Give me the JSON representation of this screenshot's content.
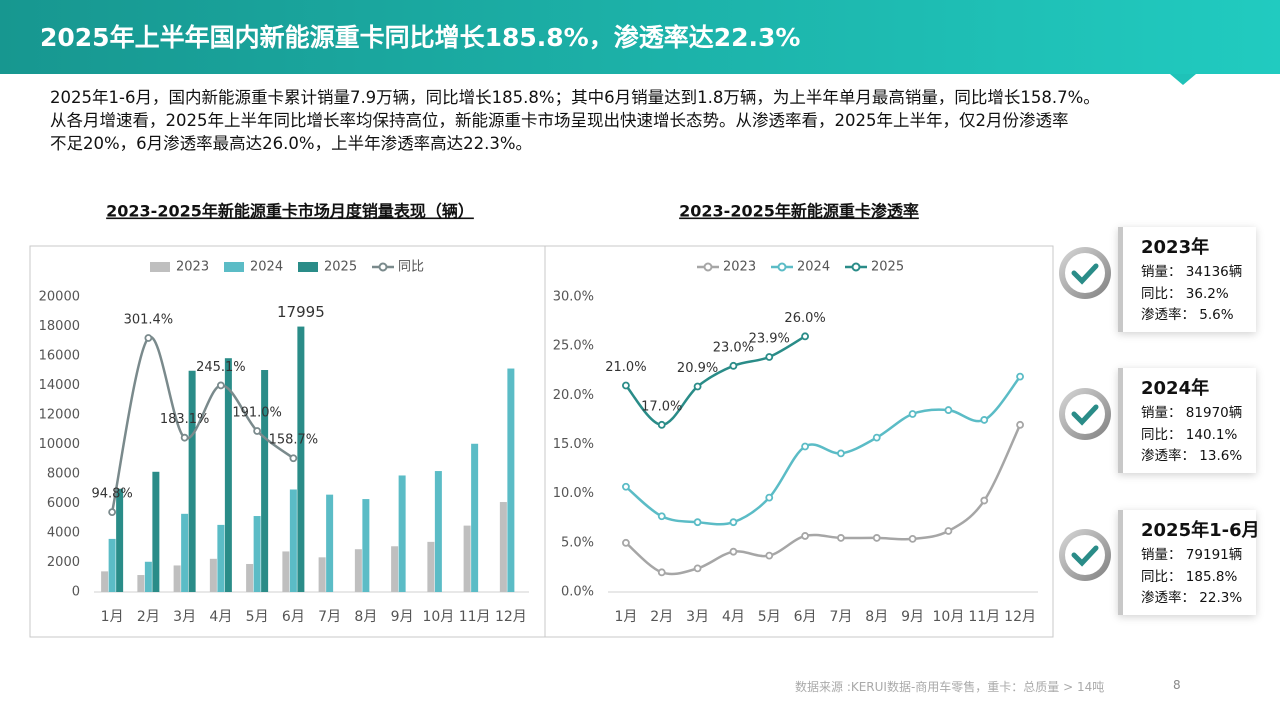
{
  "header": {
    "title": "2025年上半年国内新能源重卡同比增长185.8%，渗透率达22.3%"
  },
  "paragraph": [
    "2025年1-6月，国内新能源重卡累计销量7.9万辆，同比增长185.8%；其中6月销量达到1.8万辆，为上半年单月最高销量，同比增长158.7%。",
    "从各月增速看，2025年上半年同比增长率均保持高位，新能源重卡市场呈现出快速增长态势。从渗透率看，2025年上半年，仅2月份渗透率",
    "不足20%，6月渗透率最高达26.0%，上半年渗透率高达22.3%。"
  ],
  "chart_data": [
    {
      "type": "bar",
      "title": "2023-2025年新能源重卡市场月度销量表现（辆）",
      "categories": [
        "1月",
        "2月",
        "3月",
        "4月",
        "5月",
        "6月",
        "7月",
        "8月",
        "9月",
        "10月",
        "11月",
        "12月"
      ],
      "series": [
        {
          "name": "2023",
          "color": "#bfbfbf",
          "values": [
            1400,
            1150,
            1800,
            2250,
            1900,
            2750,
            2350,
            2900,
            3100,
            3400,
            4500,
            6100
          ]
        },
        {
          "name": "2024",
          "color": "#5bbcc6",
          "values": [
            3600,
            2050,
            5300,
            4550,
            5150,
            6950,
            6600,
            6300,
            7900,
            8200,
            10050,
            15150
          ]
        },
        {
          "name": "2025",
          "color": "#2a8c88",
          "values": [
            7000,
            8150,
            15000,
            15850,
            15050,
            17995,
            null,
            null,
            null,
            null,
            null,
            null
          ],
          "value_labels": [
            null,
            null,
            null,
            null,
            null,
            "17995",
            null,
            null,
            null,
            null,
            null,
            null
          ]
        },
        {
          "name": "同比",
          "type": "line",
          "axis": "y2",
          "color": "#7a8a8c",
          "values": [
            94.8,
            301.4,
            183.1,
            245.1,
            191.0,
            158.7,
            null,
            null,
            null,
            null,
            null,
            null
          ],
          "value_labels": [
            "94.8%",
            "301.4%",
            "183.1%",
            "245.1%",
            "191.0%",
            "158.7%",
            null,
            null,
            null,
            null,
            null,
            null
          ]
        }
      ],
      "ylim": [
        0,
        20000
      ],
      "yticks": [
        0,
        2000,
        4000,
        6000,
        8000,
        10000,
        12000,
        14000,
        16000,
        18000,
        20000
      ],
      "y2lim": [
        0,
        350
      ],
      "grid": false,
      "legend": "top"
    },
    {
      "type": "line",
      "title": "2023-2025年新能源重卡渗透率",
      "categories": [
        "1月",
        "2月",
        "3月",
        "4月",
        "5月",
        "6月",
        "7月",
        "8月",
        "9月",
        "10月",
        "11月",
        "12月"
      ],
      "series": [
        {
          "name": "2023",
          "color": "#a6a6a6",
          "values": [
            5.0,
            2.0,
            2.4,
            4.1,
            3.7,
            5.7,
            5.5,
            5.5,
            5.4,
            6.2,
            9.3,
            17.0
          ]
        },
        {
          "name": "2024",
          "color": "#5bbcc6",
          "values": [
            10.7,
            7.7,
            7.1,
            7.1,
            9.6,
            14.8,
            14.1,
            15.7,
            18.1,
            18.5,
            17.5,
            21.9
          ]
        },
        {
          "name": "2025",
          "color": "#2a8c88",
          "values": [
            21.0,
            17.0,
            20.9,
            23.0,
            23.9,
            26.0,
            null,
            null,
            null,
            null,
            null,
            null
          ],
          "value_labels": [
            "21.0%",
            "17.0%",
            "20.9%",
            "23.0%",
            "23.9%",
            "26.0%",
            null,
            null,
            null,
            null,
            null,
            null
          ]
        }
      ],
      "ylim": [
        0,
        30
      ],
      "yticks": [
        {
          "value": 0,
          "label": "0.0%"
        },
        {
          "value": 5,
          "label": "5.0%"
        },
        {
          "value": 10,
          "label": "10.0%"
        },
        {
          "value": 15,
          "label": "15.0%"
        },
        {
          "value": 20,
          "label": "20.0%"
        },
        {
          "value": 25,
          "label": "25.0%"
        },
        {
          "value": 30,
          "label": "30.0%"
        }
      ],
      "grid": false,
      "legend": "top"
    }
  ],
  "cards": [
    {
      "title": "2023年",
      "rows": [
        {
          "label": "销量：",
          "value": "34136辆"
        },
        {
          "label": "同比：",
          "value": "36.2%"
        },
        {
          "label": "渗透率：",
          "value": "5.6%"
        }
      ]
    },
    {
      "title": "2024年",
      "rows": [
        {
          "label": "销量：",
          "value": "81970辆"
        },
        {
          "label": "同比：",
          "value": "140.1%"
        },
        {
          "label": "渗透率：",
          "value": "13.6%"
        }
      ]
    },
    {
      "title": "2025年1-6月",
      "rows": [
        {
          "label": "销量：",
          "value": "79191辆"
        },
        {
          "label": "同比：",
          "value": "185.8%"
        },
        {
          "label": "渗透率：",
          "value": "22.3%"
        }
      ]
    }
  ],
  "footer": {
    "source": "数据来源 :KERUI数据-商用车零售，重卡：总质量 > 14吨",
    "page": "8"
  }
}
